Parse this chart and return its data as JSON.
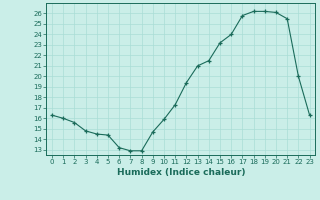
{
  "x": [
    0,
    1,
    2,
    3,
    4,
    5,
    6,
    7,
    8,
    9,
    10,
    11,
    12,
    13,
    14,
    15,
    16,
    17,
    18,
    19,
    20,
    21,
    22,
    23
  ],
  "y": [
    16.3,
    16.0,
    15.6,
    14.8,
    14.5,
    14.4,
    13.2,
    12.9,
    12.9,
    14.7,
    15.9,
    17.3,
    19.4,
    21.0,
    21.5,
    23.2,
    24.0,
    25.8,
    26.2,
    26.2,
    26.1,
    25.5,
    20.0,
    16.3
  ],
  "xlabel": "Humidex (Indice chaleur)",
  "xlim": [
    -0.5,
    23.5
  ],
  "ylim": [
    12.5,
    27.0
  ],
  "yticks": [
    13,
    14,
    15,
    16,
    17,
    18,
    19,
    20,
    21,
    22,
    23,
    24,
    25,
    26
  ],
  "xticks": [
    0,
    1,
    2,
    3,
    4,
    5,
    6,
    7,
    8,
    9,
    10,
    11,
    12,
    13,
    14,
    15,
    16,
    17,
    18,
    19,
    20,
    21,
    22,
    23
  ],
  "line_color": "#1a6b5a",
  "marker_color": "#1a6b5a",
  "bg_color": "#caeee8",
  "grid_color": "#aaddd6",
  "axes_color": "#1a6b5a",
  "label_color": "#1a6b5a",
  "tick_color": "#1a6b5a",
  "tick_fontsize": 5.0,
  "xlabel_fontsize": 6.5
}
